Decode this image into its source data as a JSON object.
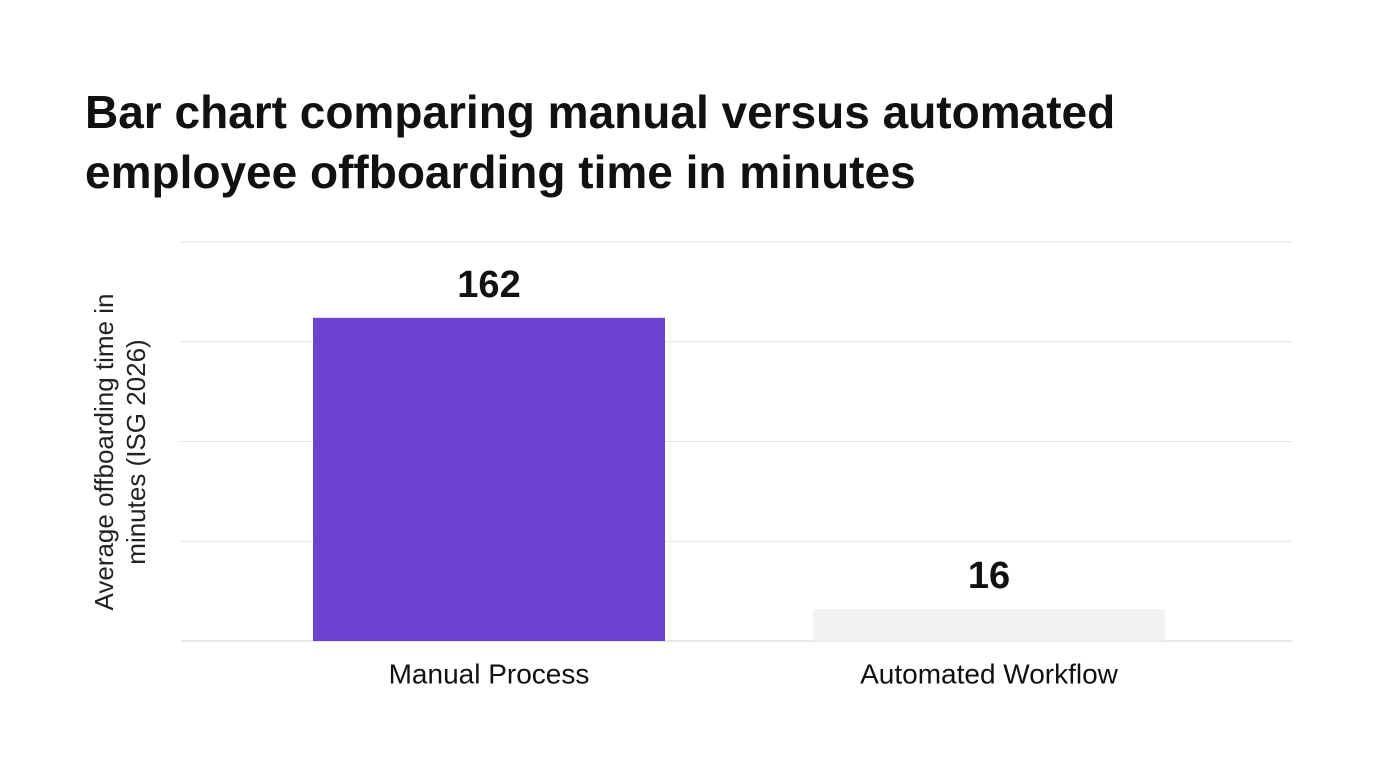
{
  "chart_data": {
    "type": "bar",
    "title": "Bar chart comparing manual versus automated employee offboarding time in minutes",
    "y_label": "Average offboarding time in minutes (ISG 2026)",
    "categories": [
      "Manual Process",
      "Automated Workflow"
    ],
    "values": [
      162,
      16
    ],
    "colors": [
      "#6c42d0",
      "#f2f2f2"
    ],
    "ylim": [
      0,
      200
    ],
    "yticks": [
      0,
      50,
      100,
      150,
      200
    ],
    "grid": true
  }
}
